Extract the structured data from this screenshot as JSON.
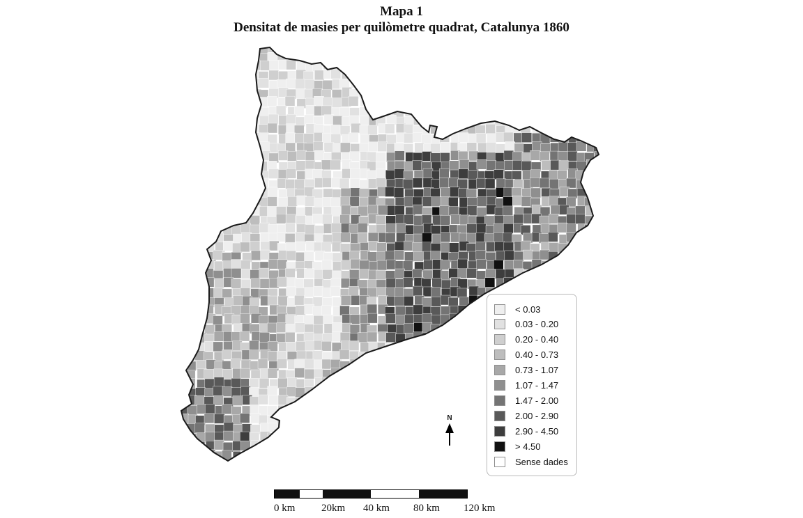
{
  "title": {
    "line1": "Mapa 1",
    "line2": "Densitat de masies per quilòmetre quadrat, Catalunya 1860"
  },
  "legend": {
    "items": [
      {
        "label": "< 0.03",
        "color": "#efefef"
      },
      {
        "label": "0.03 - 0.20",
        "color": "#e1e1e1"
      },
      {
        "label": "0.20 - 0.40",
        "color": "#cfcfcf"
      },
      {
        "label": "0.40 - 0.73",
        "color": "#bdbdbd"
      },
      {
        "label": "0.73 - 1.07",
        "color": "#a8a8a8"
      },
      {
        "label": "1.07 - 1.47",
        "color": "#8f8f8f"
      },
      {
        "label": "1.47 - 2.00",
        "color": "#747474"
      },
      {
        "label": "2.00 - 2.90",
        "color": "#595959"
      },
      {
        "label": "2.90 - 4.50",
        "color": "#3d3d3d"
      },
      {
        "label": "> 4.50",
        "color": "#111111"
      },
      {
        "label": "Sense dades",
        "color": "#ffffff"
      }
    ]
  },
  "north": {
    "letter": "N"
  },
  "scale": {
    "labels": [
      "0 km",
      "20km",
      "40 km",
      "80 km",
      "120 km"
    ]
  }
}
